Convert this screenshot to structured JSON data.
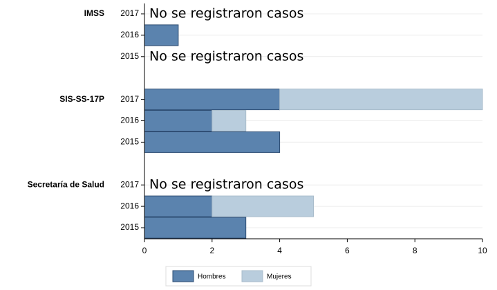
{
  "chart_data": {
    "type": "stacked-barh",
    "categories": [
      "2017",
      "2016",
      "2015",
      "2017",
      "2016",
      "2015",
      "2017",
      "2016",
      "2015"
    ],
    "category_groups": [
      "IMSS",
      null,
      null,
      "SIS-SS-17P",
      null,
      null,
      "Secretaría de Salud",
      null,
      null
    ],
    "annotations": [
      "No se  registraron casos",
      null,
      "No se  registraron casos",
      null,
      null,
      null,
      "No se  registraron casos",
      null,
      null
    ],
    "series": [
      {
        "name": "Hombres",
        "color": "#5b83ae",
        "values": [
          null,
          1,
          null,
          4,
          2,
          4,
          null,
          2,
          3
        ]
      },
      {
        "name": "Mujeres",
        "color": "#b9cddd",
        "values": [
          null,
          0,
          null,
          6,
          1,
          0,
          null,
          3,
          0
        ]
      }
    ],
    "xlim": [
      0,
      10
    ],
    "xticks": [
      0,
      2,
      4,
      6,
      8,
      10
    ],
    "grid": true
  }
}
